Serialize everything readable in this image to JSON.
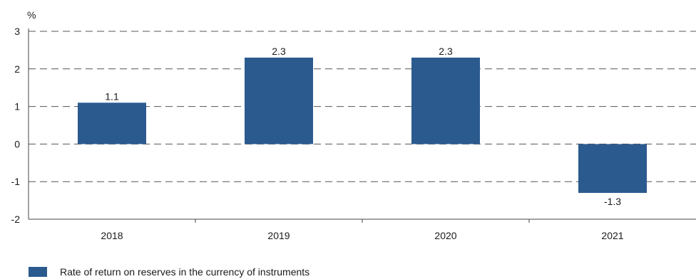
{
  "chart_data": {
    "type": "bar",
    "unit_label": "%",
    "categories": [
      "2018",
      "2019",
      "2020",
      "2021"
    ],
    "series": [
      {
        "name": "Rate of return on reserves in the currency of instruments",
        "values": [
          1.1,
          2.3,
          2.3,
          -1.3
        ],
        "data_labels": [
          "1.1",
          "2.3",
          "2.3",
          "-1.3"
        ],
        "color": "#2b5a8f"
      }
    ],
    "ylim": [
      -2,
      3
    ],
    "yticks": [
      "3",
      "2",
      "1",
      "0",
      "-1",
      "-2"
    ],
    "grid": true,
    "legend_position": "bottom-left"
  }
}
